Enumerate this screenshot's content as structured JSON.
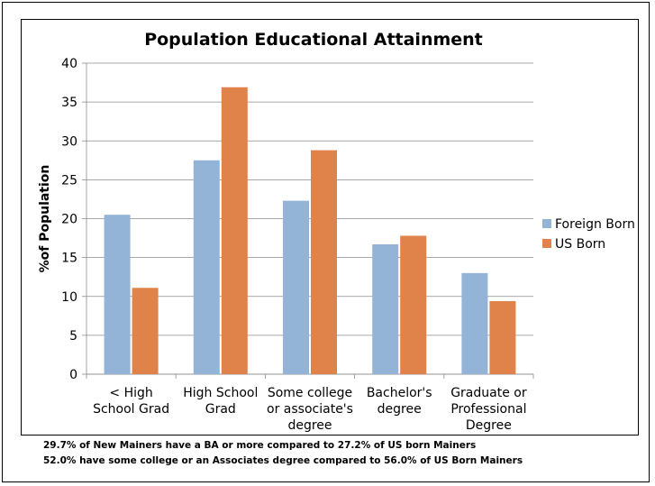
{
  "chart_data": {
    "type": "bar",
    "title": "Population Educational Attainment",
    "ylabel": "%of Population",
    "xlabel": "",
    "ylim": [
      0,
      40
    ],
    "yticks": [
      0,
      5,
      10,
      15,
      20,
      25,
      30,
      35,
      40
    ],
    "grid": true,
    "legend_position": "right",
    "categories": [
      [
        "< High",
        "School Grad"
      ],
      [
        "High School",
        "Grad"
      ],
      [
        "Some college",
        "or associate's",
        "degree"
      ],
      [
        "Bachelor's",
        "degree"
      ],
      [
        "Graduate or",
        "Professional",
        "Degree"
      ]
    ],
    "series": [
      {
        "name": "Foreign Born",
        "color": "#93b3d7",
        "values": [
          20.5,
          27.5,
          22.3,
          16.7,
          13.0
        ]
      },
      {
        "name": "US Born",
        "color": "#e0834a",
        "values": [
          11.1,
          36.9,
          28.8,
          17.8,
          9.4
        ]
      }
    ]
  },
  "notes": [
    "29.7% of New Mainers have a BA or more compared to 27.2% of US born Mainers",
    "52.0% have some college or an Associates degree compared to 56.0% of US Born Mainers"
  ]
}
